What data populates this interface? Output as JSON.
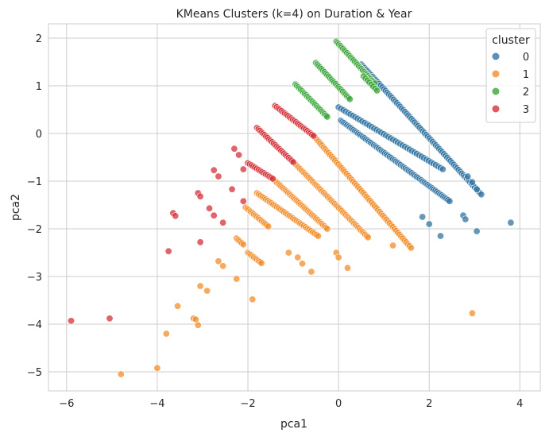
{
  "chart_data": {
    "type": "scatter",
    "title": "KMeans Clusters (k=4) on Duration & Year",
    "xlabel": "pca1",
    "ylabel": "pca2",
    "xlim": [
      -6.4,
      4.45
    ],
    "ylim": [
      -5.4,
      2.3
    ],
    "xticks": [
      -6,
      -4,
      -2,
      0,
      2,
      4
    ],
    "yticks": [
      -5,
      -4,
      -3,
      -2,
      -1,
      0,
      1,
      2
    ],
    "grid": true,
    "legend": {
      "title": "cluster",
      "position": "top-right",
      "labels": [
        "0",
        "1",
        "2",
        "3"
      ]
    },
    "colors": [
      "#3274a1",
      "#f28e2b",
      "#3aa63a",
      "#d5323a"
    ],
    "series": [
      {
        "name": "0",
        "segments": [
          {
            "start": [
              0.05,
              0.27
            ],
            "end": [
              2.45,
              -1.42
            ],
            "n": 70
          },
          {
            "start": [
              0.5,
              1.45
            ],
            "end": [
              3.15,
              -1.28
            ],
            "n": 75
          },
          {
            "start": [
              0.0,
              0.55
            ],
            "end": [
              2.3,
              -0.75
            ],
            "n": 45
          }
        ],
        "points": [
          [
            1.85,
            -1.75
          ],
          [
            2.0,
            -1.9
          ],
          [
            2.25,
            -2.15
          ],
          [
            2.75,
            -1.72
          ],
          [
            2.8,
            -1.8
          ],
          [
            2.95,
            -1.02
          ],
          [
            2.85,
            -0.9
          ],
          [
            3.05,
            -1.17
          ],
          [
            3.05,
            -2.05
          ],
          [
            3.8,
            -1.87
          ]
        ]
      },
      {
        "name": "1",
        "segments": [
          {
            "start": [
              -0.55,
              -0.05
            ],
            "end": [
              1.6,
              -2.4
            ],
            "n": 60
          },
          {
            "start": [
              -1.0,
              -0.6
            ],
            "end": [
              0.65,
              -2.18
            ],
            "n": 55
          },
          {
            "start": [
              -1.45,
              -0.95
            ],
            "end": [
              -0.25,
              -2.0
            ],
            "n": 40
          },
          {
            "start": [
              -1.8,
              -1.25
            ],
            "end": [
              -0.45,
              -2.15
            ],
            "n": 35
          },
          {
            "start": [
              -2.05,
              -1.55
            ],
            "end": [
              -1.55,
              -1.95
            ],
            "n": 15
          },
          {
            "start": [
              -2.0,
              -2.5
            ],
            "end": [
              -1.7,
              -2.72
            ],
            "n": 10
          },
          {
            "start": [
              -2.25,
              -2.2
            ],
            "end": [
              -2.1,
              -2.33
            ],
            "n": 5
          }
        ],
        "points": [
          [
            -1.1,
            -2.5
          ],
          [
            -0.9,
            -2.6
          ],
          [
            -0.8,
            -2.73
          ],
          [
            -0.6,
            -2.9
          ],
          [
            -0.05,
            -2.5
          ],
          [
            0.0,
            -2.6
          ],
          [
            0.2,
            -2.82
          ],
          [
            1.2,
            -2.35
          ],
          [
            -2.65,
            -2.68
          ],
          [
            -2.55,
            -2.78
          ],
          [
            -2.25,
            -3.05
          ],
          [
            -1.9,
            -3.48
          ],
          [
            -3.05,
            -3.2
          ],
          [
            -2.9,
            -3.3
          ],
          [
            -3.55,
            -3.62
          ],
          [
            -3.2,
            -3.88
          ],
          [
            -3.15,
            -3.9
          ],
          [
            -3.1,
            -4.02
          ],
          [
            -3.8,
            -4.2
          ],
          [
            -4.0,
            -4.92
          ],
          [
            -4.8,
            -5.05
          ],
          [
            2.95,
            -3.77
          ]
        ]
      },
      {
        "name": "2",
        "segments": [
          {
            "start": [
              -0.05,
              1.93
            ],
            "end": [
              0.8,
              1.05
            ],
            "n": 30
          },
          {
            "start": [
              -0.5,
              1.48
            ],
            "end": [
              0.25,
              0.72
            ],
            "n": 25
          },
          {
            "start": [
              -0.95,
              1.03
            ],
            "end": [
              -0.25,
              0.35
            ],
            "n": 25
          },
          {
            "start": [
              0.55,
              1.2
            ],
            "end": [
              0.85,
              0.9
            ],
            "n": 8
          }
        ],
        "points": []
      },
      {
        "name": "3",
        "segments": [
          {
            "start": [
              -1.4,
              0.58
            ],
            "end": [
              -0.55,
              -0.05
            ],
            "n": 25
          },
          {
            "start": [
              -1.8,
              0.12
            ],
            "end": [
              -1.0,
              -0.6
            ],
            "n": 25
          },
          {
            "start": [
              -2.0,
              -0.62
            ],
            "end": [
              -1.45,
              -0.95
            ],
            "n": 15
          }
        ],
        "points": [
          [
            -2.3,
            -0.32
          ],
          [
            -2.2,
            -0.45
          ],
          [
            -2.1,
            -0.75
          ],
          [
            -2.75,
            -0.77
          ],
          [
            -2.65,
            -0.9
          ],
          [
            -2.35,
            -1.17
          ],
          [
            -2.1,
            -1.42
          ],
          [
            -3.1,
            -1.25
          ],
          [
            -3.05,
            -1.32
          ],
          [
            -2.85,
            -1.57
          ],
          [
            -2.75,
            -1.72
          ],
          [
            -2.55,
            -1.87
          ],
          [
            -3.65,
            -1.67
          ],
          [
            -3.6,
            -1.73
          ],
          [
            -3.05,
            -2.28
          ],
          [
            -3.75,
            -2.47
          ],
          [
            -5.05,
            -3.88
          ],
          [
            -5.9,
            -3.93
          ]
        ]
      }
    ]
  }
}
